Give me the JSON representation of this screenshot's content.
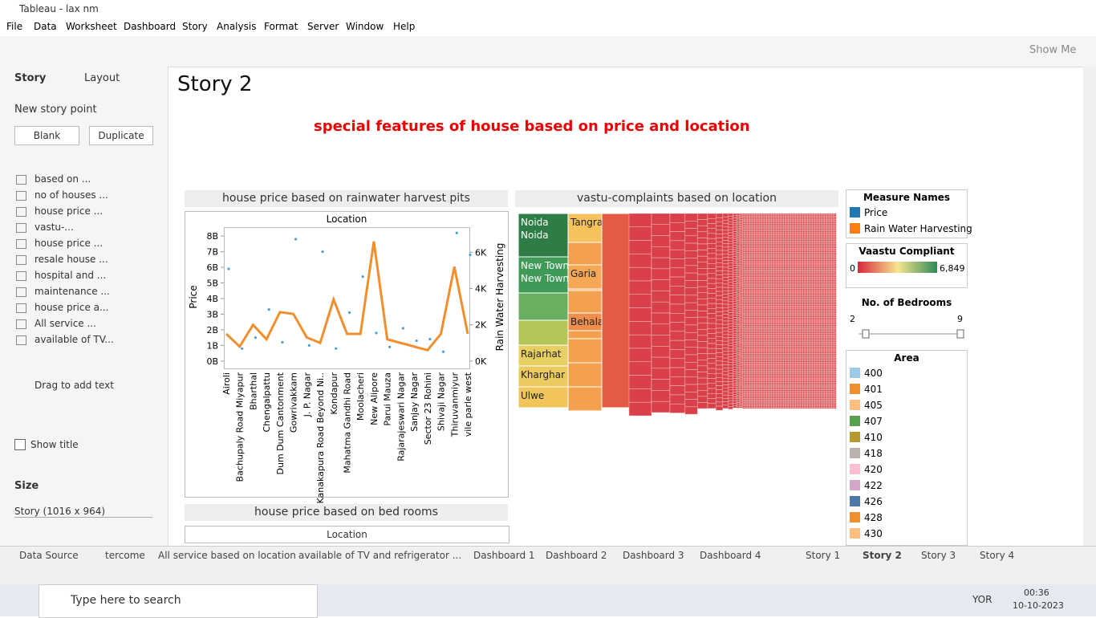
{
  "window": {
    "title": "Tableau - lax nm",
    "menu": [
      "File",
      "Data",
      "Worksheet",
      "Dashboard",
      "Story",
      "Analysis",
      "Format",
      "Server",
      "Window",
      "Help"
    ],
    "show_me": "Show Me"
  },
  "sidebar": {
    "tabs": [
      "Story",
      "Layout"
    ],
    "new_story_point": "New story point",
    "buttons": [
      "Blank",
      "Duplicate"
    ],
    "sheets": [
      "based on ...",
      "no of houses ...",
      "house price ...",
      "vastu-...",
      "house price ...",
      "resale house ...",
      "hospital and ...",
      "maintenance ...",
      "house price a...",
      "All service ...",
      "available of TV..."
    ],
    "drag_text": "Drag to add text",
    "show_title": "Show title",
    "size_label": "Size",
    "size_value": "Story (1016 x 964)"
  },
  "story": {
    "title": "Story 2",
    "heading": "special features of house based on price and location"
  },
  "chart_data": {
    "type": "dual-axis",
    "title": "house price based on rainwater harvest pits",
    "header": "Location",
    "y_label": "Price",
    "y2_label": "Rain Water Harvesting",
    "categories": [
      "Airoli",
      "Bachupaly Road Miyapur",
      "Bharthal",
      "Chengalpattu",
      "Dum Dum Cantonment",
      "Gowrivakkam",
      "J. P. Nagar",
      "Kanakapura Road Beyond Ni..",
      "Kondapur",
      "Mahatma Gandhi Road",
      "Moolacheri",
      "New Alipore",
      "Parui Mauza",
      "Rajarajeswari Nagar",
      "Sanjay Nagar",
      "Sector 23 Rohini",
      "Shivaji Nagar",
      "Thiruvanmiyur",
      "vile parle west"
    ],
    "series": [
      {
        "name": "Price",
        "color": "#4e9fd6",
        "values": [
          5900000000,
          800000000,
          1500000000,
          3300000000,
          1200000000,
          7800000000,
          1000000000,
          7000000000,
          800000000,
          3100000000,
          5400000000,
          1800000000,
          900000000,
          2100000000,
          1300000000,
          1400000000,
          600000000,
          8200000000,
          6800000000
        ]
      },
      {
        "name": "Rain Water Harvesting",
        "color": "#f28e2b",
        "axis": "y2",
        "values": [
          1500,
          800,
          2000,
          1200,
          2700,
          2600,
          1300,
          1000,
          3400,
          1500,
          1500,
          6600,
          1200,
          1000,
          800,
          600,
          1500,
          5200,
          1500
        ]
      }
    ],
    "ylim": [
      -520000000,
      8570000000
    ],
    "yticks": [
      {
        "value": 0,
        "label": "0B"
      },
      {
        "value": 1000000000,
        "label": "1B"
      },
      {
        "value": 2000000000,
        "label": "2B"
      },
      {
        "value": 3000000000,
        "label": "3B"
      },
      {
        "value": 4000000000,
        "label": "4B"
      },
      {
        "value": 5000000000,
        "label": "5B"
      },
      {
        "value": 6000000000,
        "label": "6B"
      },
      {
        "value": 7000000000,
        "label": "7B"
      },
      {
        "value": 8000000000,
        "label": "8B"
      }
    ],
    "y2lim": [
      -450,
      7390
    ],
    "y2ticks": [
      {
        "value": 0,
        "label": "0K"
      },
      {
        "value": 2000,
        "label": "2K"
      },
      {
        "value": 4000,
        "label": "4K"
      },
      {
        "value": 6000,
        "label": "6K"
      }
    ]
  },
  "treemap": {
    "title": "vastu-complaints based on location",
    "cells": [
      {
        "label": "Noida\nNoida",
        "color": "#2e7d46"
      },
      {
        "label": "New Town\nNew Town",
        "color": "#3f9a58"
      },
      {
        "label": "Tangra",
        "color": "#f5c25c"
      },
      {
        "label": "Garia",
        "color": "#f6a854"
      },
      {
        "label": "Behala",
        "color": "#f08f4c"
      },
      {
        "label": "Rajarhat",
        "color": "#e8cf62"
      },
      {
        "label": "Kharghar",
        "color": "#eccb5e"
      },
      {
        "label": "Ulwe",
        "color": "#f2c55a"
      }
    ]
  },
  "legends": {
    "measure_title": "Measure Names",
    "measures": [
      {
        "name": "Price",
        "color": "#1f77b4"
      },
      {
        "name": "Rain Water Harvesting",
        "color": "#ff7f0e"
      }
    ],
    "vaastu_title": "Vaastu Compliant",
    "vaastu_range": [
      {
        "value": 0,
        "label": "0"
      },
      {
        "value": 6849,
        "label": "6,849"
      }
    ],
    "bedrooms_title": "No. of Bedrooms",
    "bedrooms_range": [
      2,
      9
    ],
    "area_title": "Area",
    "areas": [
      {
        "label": "400",
        "color": "#9ecae9"
      },
      {
        "label": "401",
        "color": "#f28e2b"
      },
      {
        "label": "405",
        "color": "#ffbe7d"
      },
      {
        "label": "407",
        "color": "#59a14f"
      },
      {
        "label": "410",
        "color": "#b6992d"
      },
      {
        "label": "418",
        "color": "#bab0ac"
      },
      {
        "label": "420",
        "color": "#fabfd2"
      },
      {
        "label": "422",
        "color": "#d4a6c8"
      },
      {
        "label": "426",
        "color": "#4e79a7"
      },
      {
        "label": "428",
        "color": "#f28e2b"
      },
      {
        "label": "430",
        "color": "#ffbe7d"
      }
    ]
  },
  "panel2": {
    "title": "house price based on bed rooms",
    "header": "Location"
  },
  "tabs": [
    "Data Source",
    "tercome",
    "All service based on location",
    "available of TV and refrigerator ...",
    "Dashboard 1",
    "Dashboard 2",
    "Dashboard 3",
    "Dashboard 4",
    "Story 1",
    "Story 2",
    "Story 3",
    "Story 4"
  ],
  "taskbar": {
    "search": "Type here to search",
    "lang": "YOR",
    "time": "00:36",
    "date": "10-10-2023"
  }
}
